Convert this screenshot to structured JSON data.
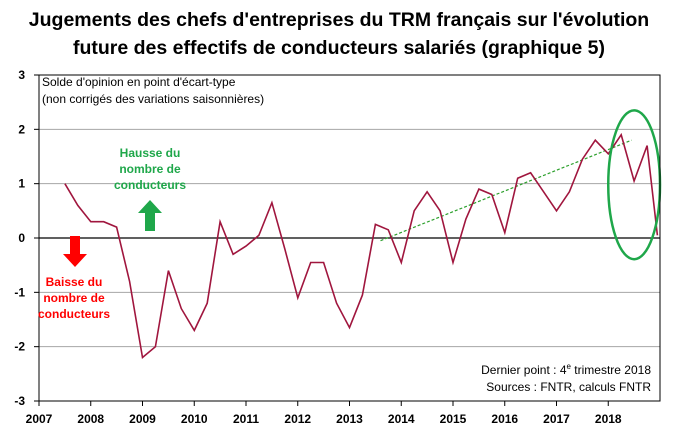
{
  "title_lines": [
    "Jugements des chefs d'entreprises du TRM français sur l'évolution",
    "future des effectifs de conducteurs salariés (graphique 5)"
  ],
  "annotations": {
    "unit_line1": "Solde d'opinion en point d'écart-type",
    "unit_line2": "(non corrigés des variations saisonnières)",
    "hausse": [
      "Hausse du",
      "nombre de",
      "conducteurs"
    ],
    "baisse": [
      "Baisse du",
      "nombre de",
      "conducteurs"
    ],
    "last_point_prefix": "Dernier point : 4",
    "last_point_sup": "e",
    "last_point_suffix": " trimestre 2018",
    "sources": "Sources : FNTR, calculs FNTR"
  },
  "colors": {
    "series": "#a0163e",
    "trend": "#2ca02c",
    "ellipse": "#1fa74a",
    "up_arrow": "#1fa74a",
    "down_arrow": "#ff0000",
    "hausse_text": "#1fa74a",
    "baisse_text": "#ff0000"
  },
  "chart_data": {
    "type": "line",
    "xlim": [
      2007,
      2019
    ],
    "ylim": [
      -3,
      3
    ],
    "x_ticks": [
      "2007",
      "2008",
      "2009",
      "2010",
      "2011",
      "2012",
      "2013",
      "2014",
      "2015",
      "2016",
      "2017",
      "2018"
    ],
    "y_ticks": [
      "3",
      "2",
      "1",
      "0",
      "-1",
      "-2",
      "-3"
    ],
    "grid": true,
    "series": [
      {
        "x": [
          2007.5,
          2007.75,
          2008.0,
          2008.25,
          2008.5,
          2008.75,
          2009.0,
          2009.25,
          2009.5,
          2009.75,
          2010.0,
          2010.25,
          2010.5,
          2010.75,
          2011.0,
          2011.25,
          2011.5,
          2011.75,
          2012.0,
          2012.25,
          2012.5,
          2012.75,
          2013.0,
          2013.25,
          2013.5,
          2013.75,
          2014.0,
          2014.25,
          2014.5,
          2014.75,
          2015.0,
          2015.25,
          2015.5,
          2015.75,
          2016.0,
          2016.25,
          2016.5,
          2016.75,
          2017.0,
          2017.25,
          2017.5,
          2017.75,
          2018.0,
          2018.25,
          2018.5,
          2018.75,
          2018.95
        ],
        "values": [
          1.0,
          0.6,
          0.3,
          0.3,
          0.2,
          -0.8,
          -2.2,
          -2.0,
          -0.6,
          -1.3,
          -1.7,
          -1.2,
          0.3,
          -0.3,
          -0.15,
          0.05,
          0.65,
          -0.2,
          -1.1,
          -0.45,
          -0.45,
          -1.2,
          -1.65,
          -1.05,
          0.25,
          0.15,
          -0.45,
          0.5,
          0.85,
          0.5,
          -0.45,
          0.35,
          0.9,
          0.8,
          0.1,
          1.1,
          1.2,
          0.85,
          0.5,
          0.85,
          1.45,
          1.8,
          1.55,
          1.9,
          1.05,
          1.7,
          0.05
        ]
      }
    ],
    "trend": {
      "x": [
        2013.6,
        2018.45
      ],
      "values": [
        -0.05,
        1.8
      ]
    },
    "highlight_ellipse": {
      "cx": 2018.5,
      "cy": 0.98,
      "rx": 0.5,
      "ry": 1.37
    }
  }
}
